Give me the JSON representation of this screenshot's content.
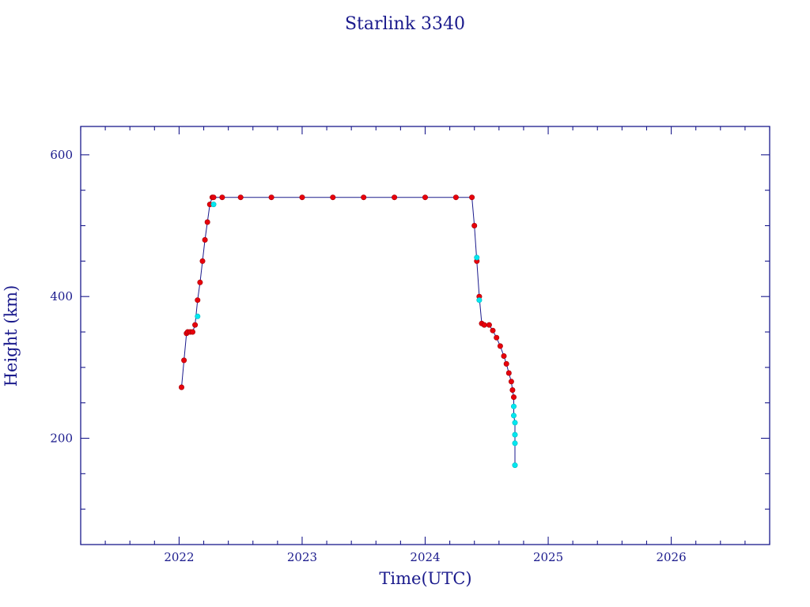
{
  "chart_data": {
    "type": "scatter",
    "title": "Starlink 3340",
    "xlabel": "Time(UTC)",
    "ylabel": "Height (km)",
    "xlim": [
      2021.2,
      2026.8
    ],
    "ylim": [
      50,
      640
    ],
    "x_ticks": [
      2022,
      2023,
      2024,
      2025,
      2026
    ],
    "x_tick_labels": [
      "2022",
      "2023",
      "2024",
      "2025",
      "2026"
    ],
    "y_ticks": [
      200,
      400,
      600
    ],
    "y_tick_labels": [
      "200",
      "400",
      "600"
    ],
    "grid": false,
    "legend": "none",
    "colors": {
      "axis": "#1a1a8c",
      "primary": "#e8000b",
      "secondary": "#00e8f0",
      "line": "#1a1a8c"
    },
    "series": [
      {
        "marker_color": "#e8000b",
        "x": [
          2022.02,
          2022.04,
          2022.06,
          2022.07,
          2022.09,
          2022.11,
          2022.13,
          2022.15,
          2022.17,
          2022.19,
          2022.21,
          2022.23,
          2022.25,
          2022.27,
          2022.28,
          2022.35,
          2022.5,
          2022.75,
          2023.0,
          2023.25,
          2023.5,
          2023.75,
          2024.0,
          2024.25,
          2024.38,
          2024.4,
          2024.42,
          2024.44,
          2024.46,
          2024.48,
          2024.52,
          2024.55,
          2024.58,
          2024.61,
          2024.64,
          2024.66,
          2024.68,
          2024.7,
          2024.71,
          2024.72
        ],
        "y": [
          272,
          310,
          348,
          350,
          350,
          350,
          360,
          395,
          420,
          450,
          480,
          505,
          530,
          540,
          540,
          540,
          540,
          540,
          540,
          540,
          540,
          540,
          540,
          540,
          540,
          500,
          450,
          400,
          362,
          360,
          360,
          352,
          342,
          330,
          316,
          305,
          292,
          280,
          268,
          258
        ]
      },
      {
        "marker_color": "#00e8f0",
        "x": [
          2022.15,
          2022.28,
          2024.42,
          2024.44,
          2024.72,
          2024.72,
          2024.73,
          2024.73,
          2024.73,
          2024.73
        ],
        "y": [
          372,
          530,
          455,
          395,
          245,
          232,
          222,
          205,
          193,
          162
        ]
      }
    ]
  }
}
